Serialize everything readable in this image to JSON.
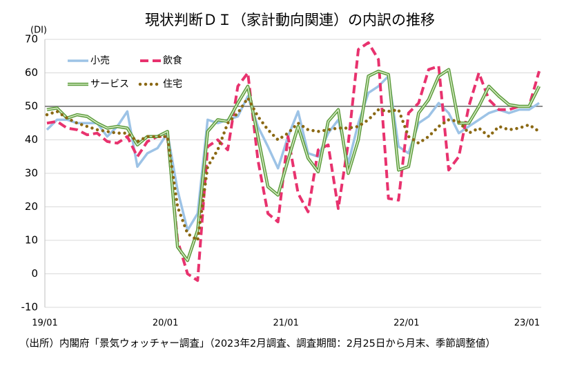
{
  "chart_data": {
    "type": "line",
    "title": "現状判断ＤＩ（家計動向関連）の内訳の推移",
    "y_label": "(DI)",
    "note": "（出所）内閣府「景気ウォッチャー調査」（2023年2月調査、調査期間：2月25日から月末、季節調整値）",
    "categories": [
      "19/01",
      null,
      null,
      null,
      null,
      null,
      null,
      null,
      null,
      null,
      null,
      null,
      "20/01",
      null,
      null,
      null,
      null,
      null,
      null,
      null,
      null,
      null,
      null,
      null,
      "21/01",
      null,
      null,
      null,
      null,
      null,
      null,
      null,
      null,
      null,
      null,
      null,
      "22/01",
      null,
      null,
      null,
      null,
      null,
      null,
      null,
      null,
      null,
      null,
      null,
      "23/01",
      null
    ],
    "series": [
      {
        "name": "小売",
        "color": "#9dc3e6",
        "style": "solid",
        "values": [
          43,
          46,
          46,
          45,
          45,
          45,
          41,
          44,
          48.5,
          32,
          36,
          37.5,
          42,
          25,
          13,
          18,
          46,
          45,
          46,
          47,
          53,
          44,
          38,
          31.5,
          41,
          48.5,
          36,
          35,
          42,
          46,
          33,
          45,
          54,
          56,
          59,
          38,
          36,
          45,
          47,
          51,
          48,
          42,
          44,
          46,
          48,
          49,
          48,
          49,
          49,
          51
        ]
      },
      {
        "name": "飲食",
        "color": "#e8326e",
        "style": "dashed",
        "values": [
          45,
          45.5,
          43.5,
          43,
          41.5,
          42,
          39.5,
          39,
          41,
          35,
          39.5,
          41,
          41,
          10,
          0,
          -2,
          38,
          40,
          37,
          56,
          60,
          34,
          18,
          15.5,
          41,
          24,
          18.5,
          37,
          38.5,
          19.5,
          39,
          67,
          69,
          64,
          22.5,
          22,
          48,
          51,
          61,
          62,
          31,
          35,
          50,
          60,
          52,
          49,
          49,
          50,
          50,
          60.5
        ]
      },
      {
        "name": "サービス",
        "color": "#5a9a3a",
        "style": "double",
        "values": [
          49,
          49.5,
          46.5,
          47.5,
          47,
          45,
          43.5,
          44,
          43.5,
          38.5,
          41,
          41,
          42.5,
          8,
          4,
          13,
          42.5,
          46,
          45.5,
          51,
          56,
          41,
          26,
          23.5,
          34,
          44,
          34.5,
          30.5,
          45.5,
          49,
          30,
          40,
          59,
          60.5,
          59.5,
          31,
          32,
          48,
          52,
          59,
          61,
          45,
          45,
          50,
          56,
          53,
          50.5,
          50,
          50,
          56
        ]
      },
      {
        "name": "住宅",
        "color": "#8b6914",
        "style": "dotted",
        "values": [
          47.5,
          48.5,
          46.5,
          45,
          44,
          43,
          42.5,
          42,
          42,
          39.5,
          41,
          41,
          41,
          20,
          12,
          10,
          32,
          37,
          45,
          48,
          52.5,
          47,
          43,
          40,
          42,
          45,
          43,
          42.5,
          43,
          43.5,
          43.5,
          44,
          46,
          49,
          48.5,
          49,
          41,
          39,
          41,
          44,
          46,
          45.5,
          42,
          43.5,
          41,
          44,
          43,
          43.5,
          44.5,
          42.5
        ]
      }
    ],
    "reference_line": 50,
    "ylim": [
      -10,
      70
    ],
    "yticks": [
      -10,
      0,
      10,
      20,
      30,
      40,
      50,
      60,
      70
    ],
    "grid": true,
    "legend": "upper left"
  }
}
